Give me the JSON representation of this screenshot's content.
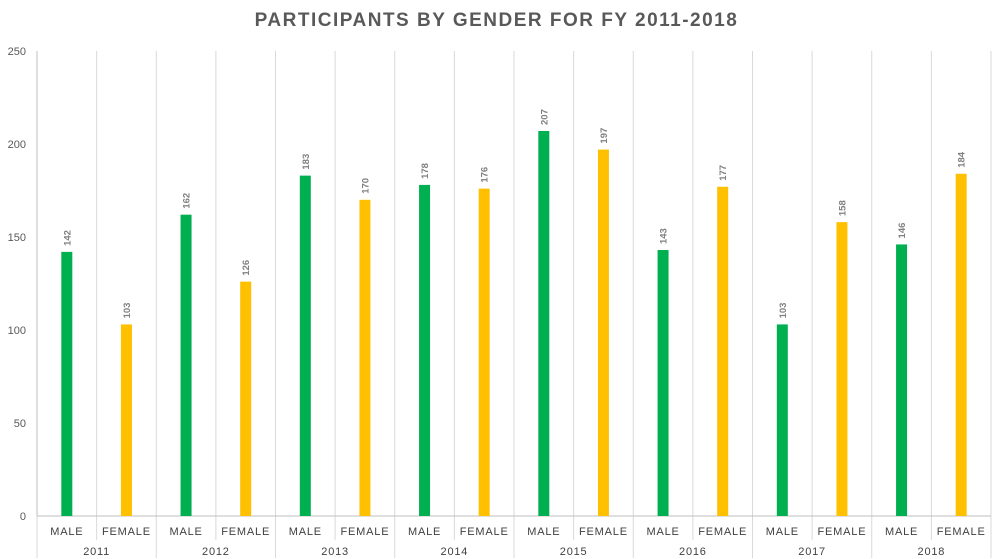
{
  "chart_data": {
    "type": "bar",
    "title": "PARTICIPANTS BY GENDER FOR FY 2011-2018",
    "xlabel": "",
    "ylabel": "",
    "ylim": [
      0,
      250
    ],
    "y_ticks": [
      0,
      50,
      100,
      150,
      200,
      250
    ],
    "grid": "vertical separators between categories",
    "legend": "none",
    "groups": [
      {
        "year": "2011",
        "bars": [
          {
            "gender": "MALE",
            "value": 142
          },
          {
            "gender": "FEMALE",
            "value": 103
          }
        ]
      },
      {
        "year": "2012",
        "bars": [
          {
            "gender": "MALE",
            "value": 162
          },
          {
            "gender": "FEMALE",
            "value": 126
          }
        ]
      },
      {
        "year": "2013",
        "bars": [
          {
            "gender": "MALE",
            "value": 183
          },
          {
            "gender": "FEMALE",
            "value": 170
          }
        ]
      },
      {
        "year": "2014",
        "bars": [
          {
            "gender": "MALE",
            "value": 178
          },
          {
            "gender": "FEMALE",
            "value": 176
          }
        ]
      },
      {
        "year": "2015",
        "bars": [
          {
            "gender": "MALE",
            "value": 207
          },
          {
            "gender": "FEMALE",
            "value": 197
          }
        ]
      },
      {
        "year": "2016",
        "bars": [
          {
            "gender": "MALE",
            "value": 143
          },
          {
            "gender": "FEMALE",
            "value": 177
          }
        ]
      },
      {
        "year": "2017",
        "bars": [
          {
            "gender": "MALE",
            "value": 103
          },
          {
            "gender": "FEMALE",
            "value": 158
          }
        ]
      },
      {
        "year": "2018",
        "bars": [
          {
            "gender": "MALE",
            "value": 146
          },
          {
            "gender": "FEMALE",
            "value": 184
          }
        ]
      }
    ],
    "colors": {
      "MALE": "#00b050",
      "FEMALE": "#ffc000"
    }
  }
}
